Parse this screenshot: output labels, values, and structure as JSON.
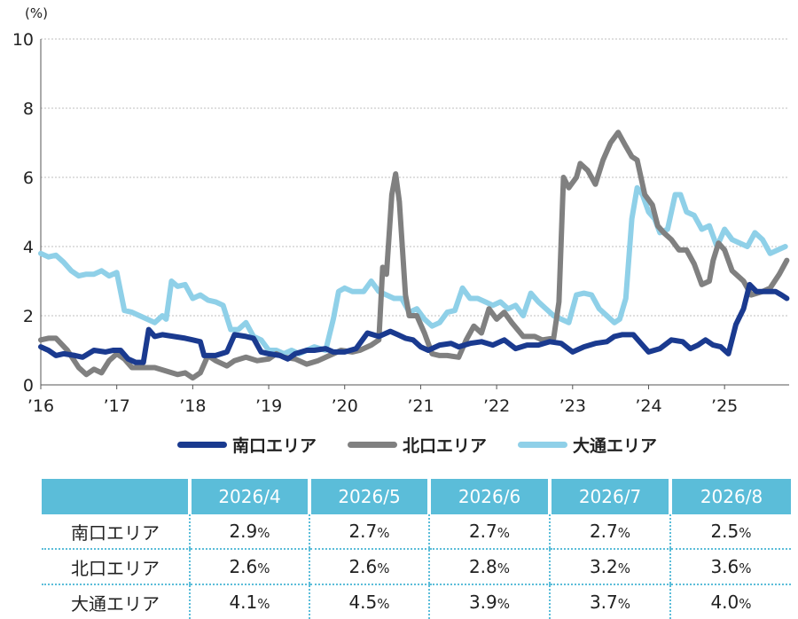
{
  "chart_data": {
    "type": "line",
    "ylabel": "(%)",
    "ylim": [
      0,
      10
    ],
    "yticks": [
      "0",
      "2",
      "4",
      "6",
      "8",
      "10"
    ],
    "xlim": [
      2016,
      2025.85
    ],
    "xticks": [
      {
        "label": "’16",
        "x": 2016
      },
      {
        "label": "’17",
        "x": 2017
      },
      {
        "label": "’18",
        "x": 2018
      },
      {
        "label": "’19",
        "x": 2019
      },
      {
        "label": "’20",
        "x": 2020
      },
      {
        "label": "’21",
        "x": 2021
      },
      {
        "label": "’22",
        "x": 2022
      },
      {
        "label": "’23",
        "x": 2023
      },
      {
        "label": "’24",
        "x": 2024
      },
      {
        "label": "’25",
        "x": 2025
      }
    ],
    "grid": "horizontal-dotted",
    "legend_placement": "bottom",
    "series": [
      {
        "name": "南口エリア",
        "color": "#1a3a8f",
        "points": [
          [
            2016.0,
            1.1
          ],
          [
            2016.1,
            1.0
          ],
          [
            2016.2,
            0.85
          ],
          [
            2016.3,
            0.9
          ],
          [
            2016.45,
            0.85
          ],
          [
            2016.55,
            0.8
          ],
          [
            2016.7,
            1.0
          ],
          [
            2016.85,
            0.95
          ],
          [
            2016.95,
            1.0
          ],
          [
            2017.05,
            1.0
          ],
          [
            2017.15,
            0.75
          ],
          [
            2017.25,
            0.65
          ],
          [
            2017.35,
            0.65
          ],
          [
            2017.42,
            1.6
          ],
          [
            2017.5,
            1.4
          ],
          [
            2017.6,
            1.45
          ],
          [
            2017.75,
            1.4
          ],
          [
            2017.9,
            1.35
          ],
          [
            2018.0,
            1.3
          ],
          [
            2018.1,
            1.25
          ],
          [
            2018.15,
            0.85
          ],
          [
            2018.3,
            0.85
          ],
          [
            2018.45,
            0.95
          ],
          [
            2018.55,
            1.45
          ],
          [
            2018.7,
            1.4
          ],
          [
            2018.8,
            1.35
          ],
          [
            2018.9,
            0.95
          ],
          [
            2019.0,
            0.9
          ],
          [
            2019.15,
            0.85
          ],
          [
            2019.25,
            0.75
          ],
          [
            2019.35,
            0.9
          ],
          [
            2019.5,
            1.0
          ],
          [
            2019.6,
            1.0
          ],
          [
            2019.75,
            1.05
          ],
          [
            2019.85,
            0.95
          ],
          [
            2020.0,
            0.95
          ],
          [
            2020.15,
            1.05
          ],
          [
            2020.3,
            1.5
          ],
          [
            2020.45,
            1.4
          ],
          [
            2020.6,
            1.55
          ],
          [
            2020.7,
            1.45
          ],
          [
            2020.8,
            1.35
          ],
          [
            2020.9,
            1.3
          ],
          [
            2021.0,
            1.1
          ],
          [
            2021.1,
            1.0
          ],
          [
            2021.25,
            1.15
          ],
          [
            2021.4,
            1.2
          ],
          [
            2021.5,
            1.1
          ],
          [
            2021.65,
            1.2
          ],
          [
            2021.8,
            1.25
          ],
          [
            2021.95,
            1.15
          ],
          [
            2022.1,
            1.3
          ],
          [
            2022.25,
            1.05
          ],
          [
            2022.4,
            1.15
          ],
          [
            2022.55,
            1.15
          ],
          [
            2022.7,
            1.25
          ],
          [
            2022.85,
            1.2
          ],
          [
            2023.0,
            0.95
          ],
          [
            2023.15,
            1.1
          ],
          [
            2023.3,
            1.2
          ],
          [
            2023.45,
            1.25
          ],
          [
            2023.55,
            1.4
          ],
          [
            2023.65,
            1.45
          ],
          [
            2023.8,
            1.45
          ],
          [
            2023.9,
            1.2
          ],
          [
            2024.0,
            0.95
          ],
          [
            2024.15,
            1.05
          ],
          [
            2024.3,
            1.3
          ],
          [
            2024.45,
            1.25
          ],
          [
            2024.55,
            1.05
          ],
          [
            2024.65,
            1.15
          ],
          [
            2024.75,
            1.3
          ],
          [
            2024.85,
            1.15
          ],
          [
            2024.95,
            1.1
          ],
          [
            2025.05,
            0.9
          ],
          [
            2025.15,
            1.75
          ],
          [
            2025.25,
            2.2
          ],
          [
            2025.33,
            2.9
          ],
          [
            2025.42,
            2.7
          ],
          [
            2025.5,
            2.7
          ],
          [
            2025.6,
            2.7
          ],
          [
            2025.67,
            2.7
          ],
          [
            2025.75,
            2.6
          ],
          [
            2025.82,
            2.5
          ]
        ]
      },
      {
        "name": "北口エリア",
        "color": "#808080",
        "points": [
          [
            2016.0,
            1.3
          ],
          [
            2016.1,
            1.35
          ],
          [
            2016.2,
            1.35
          ],
          [
            2016.35,
            1.0
          ],
          [
            2016.5,
            0.5
          ],
          [
            2016.6,
            0.3
          ],
          [
            2016.7,
            0.45
          ],
          [
            2016.8,
            0.35
          ],
          [
            2016.9,
            0.7
          ],
          [
            2017.0,
            0.9
          ],
          [
            2017.1,
            0.75
          ],
          [
            2017.2,
            0.5
          ],
          [
            2017.35,
            0.5
          ],
          [
            2017.5,
            0.5
          ],
          [
            2017.65,
            0.4
          ],
          [
            2017.8,
            0.3
          ],
          [
            2017.9,
            0.35
          ],
          [
            2018.0,
            0.2
          ],
          [
            2018.1,
            0.35
          ],
          [
            2018.2,
            0.85
          ],
          [
            2018.3,
            0.7
          ],
          [
            2018.45,
            0.55
          ],
          [
            2018.55,
            0.7
          ],
          [
            2018.7,
            0.8
          ],
          [
            2018.85,
            0.7
          ],
          [
            2019.0,
            0.75
          ],
          [
            2019.1,
            0.9
          ],
          [
            2019.2,
            0.8
          ],
          [
            2019.35,
            0.75
          ],
          [
            2019.5,
            0.6
          ],
          [
            2019.65,
            0.7
          ],
          [
            2019.8,
            0.85
          ],
          [
            2019.95,
            1.0
          ],
          [
            2020.1,
            0.95
          ],
          [
            2020.2,
            1.0
          ],
          [
            2020.35,
            1.15
          ],
          [
            2020.45,
            1.3
          ],
          [
            2020.5,
            3.4
          ],
          [
            2020.55,
            3.2
          ],
          [
            2020.62,
            5.5
          ],
          [
            2020.67,
            6.1
          ],
          [
            2020.72,
            5.3
          ],
          [
            2020.8,
            2.6
          ],
          [
            2020.85,
            2.0
          ],
          [
            2020.95,
            2.0
          ],
          [
            2021.05,
            1.5
          ],
          [
            2021.15,
            0.9
          ],
          [
            2021.25,
            0.85
          ],
          [
            2021.35,
            0.85
          ],
          [
            2021.5,
            0.8
          ],
          [
            2021.6,
            1.3
          ],
          [
            2021.7,
            1.7
          ],
          [
            2021.8,
            1.5
          ],
          [
            2021.9,
            2.2
          ],
          [
            2022.0,
            1.9
          ],
          [
            2022.1,
            2.1
          ],
          [
            2022.2,
            1.8
          ],
          [
            2022.35,
            1.4
          ],
          [
            2022.5,
            1.4
          ],
          [
            2022.6,
            1.3
          ],
          [
            2022.75,
            1.35
          ],
          [
            2022.82,
            2.4
          ],
          [
            2022.88,
            6.0
          ],
          [
            2022.95,
            5.7
          ],
          [
            2023.05,
            6.0
          ],
          [
            2023.1,
            6.4
          ],
          [
            2023.2,
            6.2
          ],
          [
            2023.3,
            5.8
          ],
          [
            2023.4,
            6.5
          ],
          [
            2023.5,
            7.0
          ],
          [
            2023.6,
            7.3
          ],
          [
            2023.7,
            6.9
          ],
          [
            2023.78,
            6.6
          ],
          [
            2023.85,
            6.5
          ],
          [
            2023.95,
            5.5
          ],
          [
            2024.05,
            5.2
          ],
          [
            2024.12,
            4.6
          ],
          [
            2024.2,
            4.4
          ],
          [
            2024.3,
            4.2
          ],
          [
            2024.4,
            3.9
          ],
          [
            2024.5,
            3.9
          ],
          [
            2024.6,
            3.5
          ],
          [
            2024.7,
            2.9
          ],
          [
            2024.8,
            3.0
          ],
          [
            2024.85,
            3.6
          ],
          [
            2024.92,
            4.1
          ],
          [
            2025.0,
            3.9
          ],
          [
            2025.1,
            3.3
          ],
          [
            2025.25,
            3.0
          ],
          [
            2025.35,
            2.6
          ],
          [
            2025.5,
            2.7
          ],
          [
            2025.6,
            2.8
          ],
          [
            2025.72,
            3.2
          ],
          [
            2025.82,
            3.6
          ]
        ]
      },
      {
        "name": "大通エリア",
        "color": "#8fd0e8",
        "points": [
          [
            2016.0,
            3.8
          ],
          [
            2016.1,
            3.7
          ],
          [
            2016.2,
            3.75
          ],
          [
            2016.3,
            3.55
          ],
          [
            2016.4,
            3.3
          ],
          [
            2016.5,
            3.15
          ],
          [
            2016.6,
            3.2
          ],
          [
            2016.7,
            3.2
          ],
          [
            2016.8,
            3.3
          ],
          [
            2016.9,
            3.15
          ],
          [
            2017.0,
            3.25
          ],
          [
            2017.1,
            2.15
          ],
          [
            2017.2,
            2.1
          ],
          [
            2017.3,
            2.0
          ],
          [
            2017.4,
            1.9
          ],
          [
            2017.5,
            1.8
          ],
          [
            2017.6,
            2.0
          ],
          [
            2017.65,
            1.9
          ],
          [
            2017.72,
            3.0
          ],
          [
            2017.8,
            2.85
          ],
          [
            2017.9,
            2.9
          ],
          [
            2018.0,
            2.5
          ],
          [
            2018.1,
            2.6
          ],
          [
            2018.2,
            2.45
          ],
          [
            2018.3,
            2.4
          ],
          [
            2018.4,
            2.3
          ],
          [
            2018.5,
            1.6
          ],
          [
            2018.6,
            1.6
          ],
          [
            2018.7,
            1.8
          ],
          [
            2018.8,
            1.4
          ],
          [
            2018.9,
            1.3
          ],
          [
            2019.0,
            1.0
          ],
          [
            2019.1,
            1.0
          ],
          [
            2019.2,
            0.9
          ],
          [
            2019.3,
            1.0
          ],
          [
            2019.4,
            0.9
          ],
          [
            2019.5,
            1.0
          ],
          [
            2019.6,
            1.1
          ],
          [
            2019.75,
            1.0
          ],
          [
            2019.85,
            1.9
          ],
          [
            2019.92,
            2.7
          ],
          [
            2020.0,
            2.8
          ],
          [
            2020.1,
            2.7
          ],
          [
            2020.25,
            2.7
          ],
          [
            2020.35,
            3.0
          ],
          [
            2020.45,
            2.7
          ],
          [
            2020.55,
            2.6
          ],
          [
            2020.65,
            2.5
          ],
          [
            2020.75,
            2.5
          ],
          [
            2020.85,
            2.1
          ],
          [
            2020.95,
            2.2
          ],
          [
            2021.05,
            1.9
          ],
          [
            2021.15,
            1.7
          ],
          [
            2021.25,
            1.8
          ],
          [
            2021.35,
            2.1
          ],
          [
            2021.45,
            2.15
          ],
          [
            2021.55,
            2.8
          ],
          [
            2021.65,
            2.5
          ],
          [
            2021.75,
            2.5
          ],
          [
            2021.85,
            2.4
          ],
          [
            2021.95,
            2.3
          ],
          [
            2022.05,
            2.4
          ],
          [
            2022.15,
            2.2
          ],
          [
            2022.25,
            2.3
          ],
          [
            2022.35,
            2.0
          ],
          [
            2022.45,
            2.65
          ],
          [
            2022.55,
            2.4
          ],
          [
            2022.65,
            2.2
          ],
          [
            2022.75,
            2.0
          ],
          [
            2022.85,
            1.9
          ],
          [
            2022.95,
            1.8
          ],
          [
            2023.05,
            2.6
          ],
          [
            2023.15,
            2.65
          ],
          [
            2023.25,
            2.6
          ],
          [
            2023.35,
            2.2
          ],
          [
            2023.45,
            2.0
          ],
          [
            2023.55,
            1.8
          ],
          [
            2023.62,
            1.9
          ],
          [
            2023.7,
            2.5
          ],
          [
            2023.78,
            4.8
          ],
          [
            2023.85,
            5.7
          ],
          [
            2023.92,
            5.5
          ],
          [
            2024.0,
            5.0
          ],
          [
            2024.08,
            4.8
          ],
          [
            2024.15,
            4.4
          ],
          [
            2024.25,
            4.5
          ],
          [
            2024.35,
            5.5
          ],
          [
            2024.42,
            5.5
          ],
          [
            2024.5,
            5.0
          ],
          [
            2024.6,
            4.9
          ],
          [
            2024.7,
            4.5
          ],
          [
            2024.8,
            4.6
          ],
          [
            2024.9,
            4.0
          ],
          [
            2025.0,
            4.5
          ],
          [
            2025.1,
            4.2
          ],
          [
            2025.2,
            4.1
          ],
          [
            2025.3,
            4.0
          ],
          [
            2025.4,
            4.4
          ],
          [
            2025.5,
            4.2
          ],
          [
            2025.6,
            3.8
          ],
          [
            2025.7,
            3.9
          ],
          [
            2025.8,
            4.0
          ]
        ]
      }
    ]
  },
  "table": {
    "headers": [
      "",
      "2026/4",
      "2026/5",
      "2026/6",
      "2026/7",
      "2026/8"
    ],
    "unit": "%",
    "rows": [
      {
        "label": "南口エリア",
        "values": [
          "2.9",
          "2.7",
          "2.7",
          "2.7",
          "2.5"
        ]
      },
      {
        "label": "北口エリア",
        "values": [
          "2.6",
          "2.6",
          "2.8",
          "3.2",
          "3.6"
        ]
      },
      {
        "label": "大通エリア",
        "values": [
          "4.1",
          "4.5",
          "3.9",
          "3.7",
          "4.0"
        ]
      }
    ]
  }
}
